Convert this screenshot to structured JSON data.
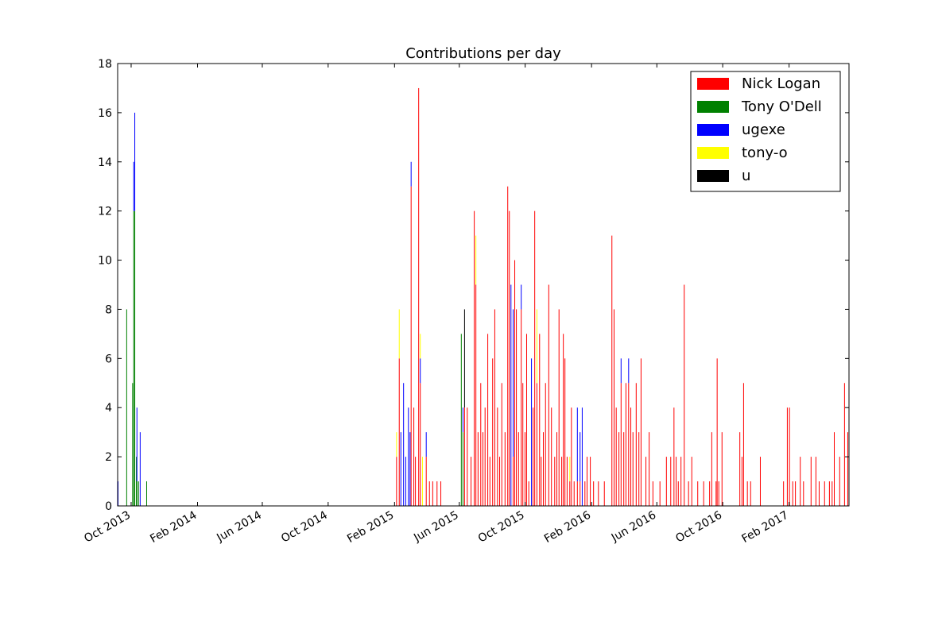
{
  "chart_data": {
    "type": "bar",
    "stacked": true,
    "title": "Contributions per day",
    "x": [
      15954,
      15970,
      15981,
      15983,
      15985,
      15988,
      15989,
      15992,
      15995,
      16007,
      16470,
      16475,
      16478,
      16483,
      16487,
      16492,
      16495,
      16497,
      16502,
      16505,
      16511,
      16514,
      16518,
      16525,
      16531,
      16537,
      16545,
      16552,
      16590,
      16593,
      16596,
      16601,
      16608,
      16614,
      16617,
      16621,
      16626,
      16630,
      16634,
      16639,
      16643,
      16648,
      16652,
      16657,
      16661,
      16665,
      16671,
      16676,
      16679,
      16682,
      16686,
      16689,
      16692,
      16696,
      16701,
      16704,
      16708,
      16711,
      16715,
      16720,
      16723,
      16726,
      16730,
      16735,
      16738,
      16742,
      16746,
      16752,
      16757,
      16763,
      16767,
      16771,
      16776,
      16779,
      16782,
      16786,
      16791,
      16794,
      16799,
      16805,
      16810,
      16814,
      16819,
      16823,
      16829,
      16835,
      16844,
      16855,
      16869,
      16873,
      16877,
      16882,
      16886,
      16891,
      16895,
      16900,
      16904,
      16908,
      16914,
      16919,
      16923,
      16932,
      16938,
      16945,
      16958,
      16970,
      16978,
      16984,
      16988,
      16992,
      16997,
      17003,
      17011,
      17017,
      17028,
      17039,
      17050,
      17054,
      17062,
      17064,
      17067,
      17073,
      17106,
      17110,
      17113,
      17120,
      17126,
      17144,
      17187,
      17194,
      17198,
      17204,
      17209,
      17218,
      17224,
      17238,
      17247,
      17253,
      17263,
      17272,
      17277,
      17281,
      17291,
      17300,
      17306
    ],
    "series": [
      {
        "name": "Nick Logan",
        "color": "#ff0000",
        "values": [
          0,
          0,
          0,
          0,
          0,
          0,
          0,
          0,
          0,
          0,
          2,
          6,
          0,
          0,
          0,
          0,
          0,
          13,
          4,
          2,
          17,
          5,
          0,
          2,
          1,
          1,
          1,
          1,
          0,
          0,
          4,
          4,
          2,
          12,
          9,
          3,
          5,
          3,
          4,
          7,
          2,
          6,
          8,
          4,
          2,
          5,
          3,
          13,
          12,
          0,
          2,
          10,
          8,
          3,
          8,
          5,
          3,
          7,
          1,
          0,
          4,
          12,
          5,
          7,
          2,
          3,
          5,
          9,
          4,
          2,
          3,
          8,
          2,
          7,
          6,
          2,
          1,
          4,
          1,
          1,
          1,
          0,
          1,
          2,
          2,
          1,
          1,
          1,
          11,
          8,
          4,
          3,
          5,
          3,
          5,
          5,
          4,
          3,
          5,
          3,
          6,
          2,
          3,
          1,
          1,
          2,
          2,
          4,
          2,
          1,
          2,
          9,
          1,
          2,
          1,
          1,
          1,
          3,
          1,
          6,
          1,
          3,
          3,
          2,
          5,
          1,
          1,
          2,
          1,
          4,
          4,
          1,
          1,
          2,
          1,
          2,
          2,
          1,
          1,
          1,
          1,
          3,
          2,
          5,
          3
        ]
      },
      {
        "name": "Tony O'Dell",
        "color": "#008000",
        "values": [
          0,
          8,
          5,
          12,
          12,
          2,
          1,
          1,
          0,
          1,
          0,
          0,
          0,
          0,
          0,
          0,
          0,
          0,
          0,
          0,
          0,
          0,
          0,
          0,
          0,
          0,
          0,
          0,
          7,
          3,
          0,
          0,
          0,
          0,
          0,
          0,
          0,
          0,
          0,
          0,
          0,
          0,
          0,
          0,
          0,
          0,
          0,
          0,
          0,
          0,
          0,
          0,
          0,
          0,
          0,
          0,
          0,
          0,
          0,
          0,
          0,
          0,
          0,
          0,
          0,
          0,
          0,
          0,
          0,
          0,
          0,
          0,
          0,
          0,
          0,
          0,
          0,
          0,
          0,
          0,
          0,
          0,
          0,
          0,
          0,
          0,
          0,
          0,
          0,
          0,
          0,
          0,
          0,
          0,
          0,
          0,
          0,
          0,
          0,
          0,
          0,
          0,
          0,
          0,
          0,
          0,
          0,
          0,
          0,
          0,
          0,
          0,
          0,
          0,
          0,
          0,
          0,
          0,
          0,
          0,
          0,
          0,
          0,
          0,
          0,
          0,
          0,
          0,
          0,
          0,
          0,
          0,
          0,
          0,
          0,
          0,
          0,
          0,
          0,
          0,
          0,
          0,
          0,
          0,
          0
        ]
      },
      {
        "name": "ugexe",
        "color": "#0000ff",
        "values": [
          1,
          0,
          0,
          2,
          4,
          0,
          3,
          0,
          3,
          0,
          0,
          0,
          3,
          5,
          2,
          4,
          3,
          1,
          0,
          0,
          0,
          1,
          0,
          1,
          0,
          0,
          0,
          0,
          0,
          1,
          0,
          0,
          0,
          0,
          0,
          0,
          0,
          0,
          0,
          0,
          0,
          0,
          0,
          0,
          0,
          0,
          0,
          0,
          0,
          9,
          6,
          0,
          0,
          0,
          1,
          0,
          0,
          0,
          0,
          6,
          0,
          0,
          0,
          0,
          0,
          0,
          0,
          0,
          0,
          0,
          0,
          0,
          0,
          0,
          0,
          0,
          0,
          0,
          0,
          3,
          2,
          4,
          0,
          0,
          0,
          0,
          0,
          0,
          0,
          0,
          0,
          0,
          1,
          0,
          0,
          1,
          0,
          0,
          0,
          0,
          0,
          0,
          0,
          0,
          0,
          0,
          0,
          0,
          0,
          0,
          0,
          0,
          0,
          0,
          0,
          0,
          0,
          0,
          0,
          0,
          0,
          0,
          0,
          0,
          0,
          0,
          0,
          0,
          0,
          0,
          0,
          0,
          0,
          0,
          0,
          0,
          0,
          0,
          0,
          0,
          0,
          0,
          0,
          0,
          0
        ]
      },
      {
        "name": "tony-o",
        "color": "#ffff00",
        "values": [
          0,
          0,
          0,
          0,
          0,
          0,
          0,
          0,
          0,
          0,
          1,
          2,
          0,
          0,
          0,
          0,
          0,
          0,
          0,
          0,
          0,
          1,
          2,
          0,
          0,
          0,
          0,
          0,
          0,
          0,
          0,
          0,
          0,
          0,
          2,
          0,
          0,
          0,
          0,
          0,
          0,
          0,
          0,
          0,
          0,
          0,
          0,
          0,
          0,
          0,
          0,
          0,
          0,
          0,
          0,
          0,
          0,
          0,
          0,
          0,
          0,
          0,
          3,
          0,
          0,
          0,
          0,
          0,
          0,
          0,
          0,
          0,
          0,
          0,
          0,
          0,
          1,
          0,
          0,
          0,
          0,
          0,
          0,
          0,
          0,
          0,
          0,
          0,
          0,
          0,
          0,
          0,
          0,
          0,
          0,
          0,
          0,
          0,
          0,
          0,
          0,
          0,
          0,
          0,
          0,
          0,
          0,
          0,
          0,
          0,
          0,
          0,
          0,
          0,
          0,
          0,
          0,
          0,
          0,
          0,
          0,
          0,
          0,
          0,
          0,
          0,
          0,
          0,
          0,
          0,
          0,
          0,
          0,
          0,
          0,
          0,
          0,
          0,
          0,
          0,
          0,
          0,
          0,
          0,
          0
        ]
      },
      {
        "name": "u",
        "color": "#000000",
        "values": [
          0,
          0,
          0,
          0,
          0,
          0,
          0,
          0,
          0,
          0,
          0,
          0,
          0,
          0,
          0,
          0,
          0,
          0,
          0,
          0,
          0,
          0,
          0,
          0,
          0,
          0,
          0,
          0,
          0,
          0,
          4,
          0,
          0,
          0,
          0,
          0,
          0,
          0,
          0,
          0,
          0,
          0,
          0,
          0,
          0,
          0,
          0,
          0,
          0,
          0,
          0,
          0,
          0,
          0,
          0,
          0,
          0,
          0,
          0,
          0,
          0,
          0,
          0,
          0,
          0,
          0,
          0,
          0,
          0,
          0,
          0,
          0,
          0,
          0,
          0,
          0,
          0,
          0,
          0,
          0,
          0,
          0,
          0,
          0,
          0,
          0,
          0,
          0,
          0,
          0,
          0,
          0,
          0,
          0,
          0,
          0,
          0,
          0,
          0,
          0,
          0,
          0,
          0,
          0,
          0,
          0,
          0,
          0,
          0,
          0,
          0,
          0,
          0,
          0,
          0,
          0,
          0,
          0,
          0,
          0,
          0,
          0,
          0,
          0,
          0,
          0,
          0,
          0,
          0,
          0,
          0,
          0,
          0,
          0,
          0,
          0,
          0,
          0,
          0,
          0,
          0,
          0,
          0,
          0,
          0
        ]
      }
    ],
    "xlim": [
      15954,
      17309
    ],
    "xticks": [
      {
        "value": 15979,
        "label": "Oct 2013"
      },
      {
        "value": 16102,
        "label": "Feb 2014"
      },
      {
        "value": 16222,
        "label": "Jun 2014"
      },
      {
        "value": 16344,
        "label": "Oct 2014"
      },
      {
        "value": 16467,
        "label": "Feb 2015"
      },
      {
        "value": 16587,
        "label": "Jun 2015"
      },
      {
        "value": 16709,
        "label": "Oct 2015"
      },
      {
        "value": 16832,
        "label": "Feb 2016"
      },
      {
        "value": 16953,
        "label": "Jun 2016"
      },
      {
        "value": 17075,
        "label": "Oct 2016"
      },
      {
        "value": 17198,
        "label": "Feb 2017"
      }
    ],
    "ylim": [
      0,
      18
    ],
    "yticks": [
      0,
      2,
      4,
      6,
      8,
      10,
      12,
      14,
      16,
      18
    ],
    "legend": "upper right"
  }
}
